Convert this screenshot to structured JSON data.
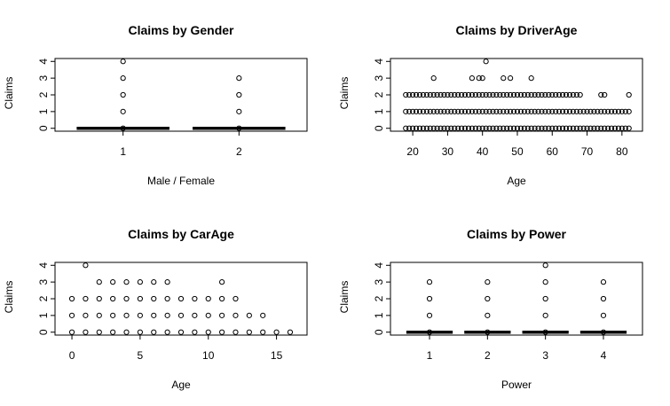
{
  "chart_data": [
    {
      "type": "scatter",
      "title": "Claims by Gender",
      "xlabel": "Male / Female",
      "ylabel": "Claims",
      "xlim": [
        0.5,
        2.5
      ],
      "ylim": [
        0,
        4
      ],
      "xticks": [
        1,
        2
      ],
      "yticks": [
        0,
        1,
        2,
        3,
        4
      ],
      "grid": false,
      "series": [
        {
          "x": [
            1,
            1,
            1,
            1,
            1
          ],
          "y": [
            0,
            1,
            2,
            3,
            4
          ]
        },
        {
          "x": [
            2,
            2,
            2,
            2
          ],
          "y": [
            0,
            1,
            2,
            3
          ]
        }
      ],
      "bars": [
        {
          "x": 1,
          "y": 0,
          "from": 0.6,
          "to": 1.4
        },
        {
          "x": 2,
          "y": 0,
          "from": 1.6,
          "to": 2.4
        }
      ]
    },
    {
      "type": "scatter",
      "title": "Claims by DriverAge",
      "xlabel": "Age",
      "ylabel": "Claims",
      "xlim": [
        16.5,
        83
      ],
      "ylim": [
        0,
        4
      ],
      "xticks": [
        20,
        30,
        40,
        50,
        60,
        70,
        80
      ],
      "yticks": [
        0,
        1,
        2,
        3,
        4
      ],
      "grid": false,
      "rows": [
        {
          "y": 0,
          "from": 18,
          "to": 82
        },
        {
          "y": 1,
          "from": 18,
          "to": 82
        },
        {
          "y": 2,
          "from": 18,
          "to": 68
        }
      ],
      "series": [
        {
          "x": [
            74,
            75,
            82
          ],
          "y": [
            2,
            2,
            2
          ]
        },
        {
          "x": [
            26,
            37,
            39,
            40,
            46,
            48,
            54
          ],
          "y": [
            3,
            3,
            3,
            3,
            3,
            3,
            3
          ]
        },
        {
          "x": [
            41
          ],
          "y": [
            4
          ]
        }
      ]
    },
    {
      "type": "scatter",
      "title": "Claims by CarAge",
      "xlabel": "Age",
      "ylabel": "Claims",
      "xlim": [
        -0.5,
        16.5
      ],
      "ylim": [
        0,
        4
      ],
      "xticks": [
        0,
        5,
        10,
        15
      ],
      "yticks": [
        0,
        1,
        2,
        3,
        4
      ],
      "grid": false,
      "series": [
        {
          "x": [
            0,
            1,
            2,
            3,
            4,
            5,
            6,
            7,
            8,
            9,
            10,
            11,
            12,
            13,
            14,
            15,
            16
          ],
          "y": [
            0,
            0,
            0,
            0,
            0,
            0,
            0,
            0,
            0,
            0,
            0,
            0,
            0,
            0,
            0,
            0,
            0
          ]
        },
        {
          "x": [
            0,
            1,
            2,
            3,
            4,
            5,
            6,
            7,
            8,
            9,
            10,
            11,
            12,
            13,
            14
          ],
          "y": [
            1,
            1,
            1,
            1,
            1,
            1,
            1,
            1,
            1,
            1,
            1,
            1,
            1,
            1,
            1
          ]
        },
        {
          "x": [
            0,
            1,
            2,
            3,
            4,
            5,
            6,
            7,
            8,
            9,
            10,
            11,
            12
          ],
          "y": [
            2,
            2,
            2,
            2,
            2,
            2,
            2,
            2,
            2,
            2,
            2,
            2,
            2
          ]
        },
        {
          "x": [
            2,
            3,
            4,
            5,
            6,
            7,
            11
          ],
          "y": [
            3,
            3,
            3,
            3,
            3,
            3,
            3
          ]
        },
        {
          "x": [
            1
          ],
          "y": [
            4
          ]
        }
      ]
    },
    {
      "type": "scatter",
      "title": "Claims by Power",
      "xlabel": "Power",
      "ylabel": "Claims",
      "xlim": [
        0.5,
        4.5
      ],
      "ylim": [
        0,
        4
      ],
      "xticks": [
        1,
        2,
        3,
        4
      ],
      "yticks": [
        0,
        1,
        2,
        3,
        4
      ],
      "grid": false,
      "series": [
        {
          "x": [
            1,
            1,
            1,
            1
          ],
          "y": [
            0,
            1,
            2,
            3
          ]
        },
        {
          "x": [
            2,
            2,
            2,
            2
          ],
          "y": [
            0,
            1,
            2,
            3
          ]
        },
        {
          "x": [
            3,
            3,
            3,
            3,
            3
          ],
          "y": [
            0,
            1,
            2,
            3,
            4
          ]
        },
        {
          "x": [
            4,
            4,
            4,
            4
          ],
          "y": [
            0,
            1,
            2,
            3
          ]
        }
      ],
      "bars": [
        {
          "x": 1,
          "y": 0,
          "from": 0.6,
          "to": 1.4
        },
        {
          "x": 2,
          "y": 0,
          "from": 1.6,
          "to": 2.4
        },
        {
          "x": 3,
          "y": 0,
          "from": 2.6,
          "to": 3.4
        },
        {
          "x": 4,
          "y": 0,
          "from": 3.6,
          "to": 4.4
        }
      ]
    }
  ]
}
